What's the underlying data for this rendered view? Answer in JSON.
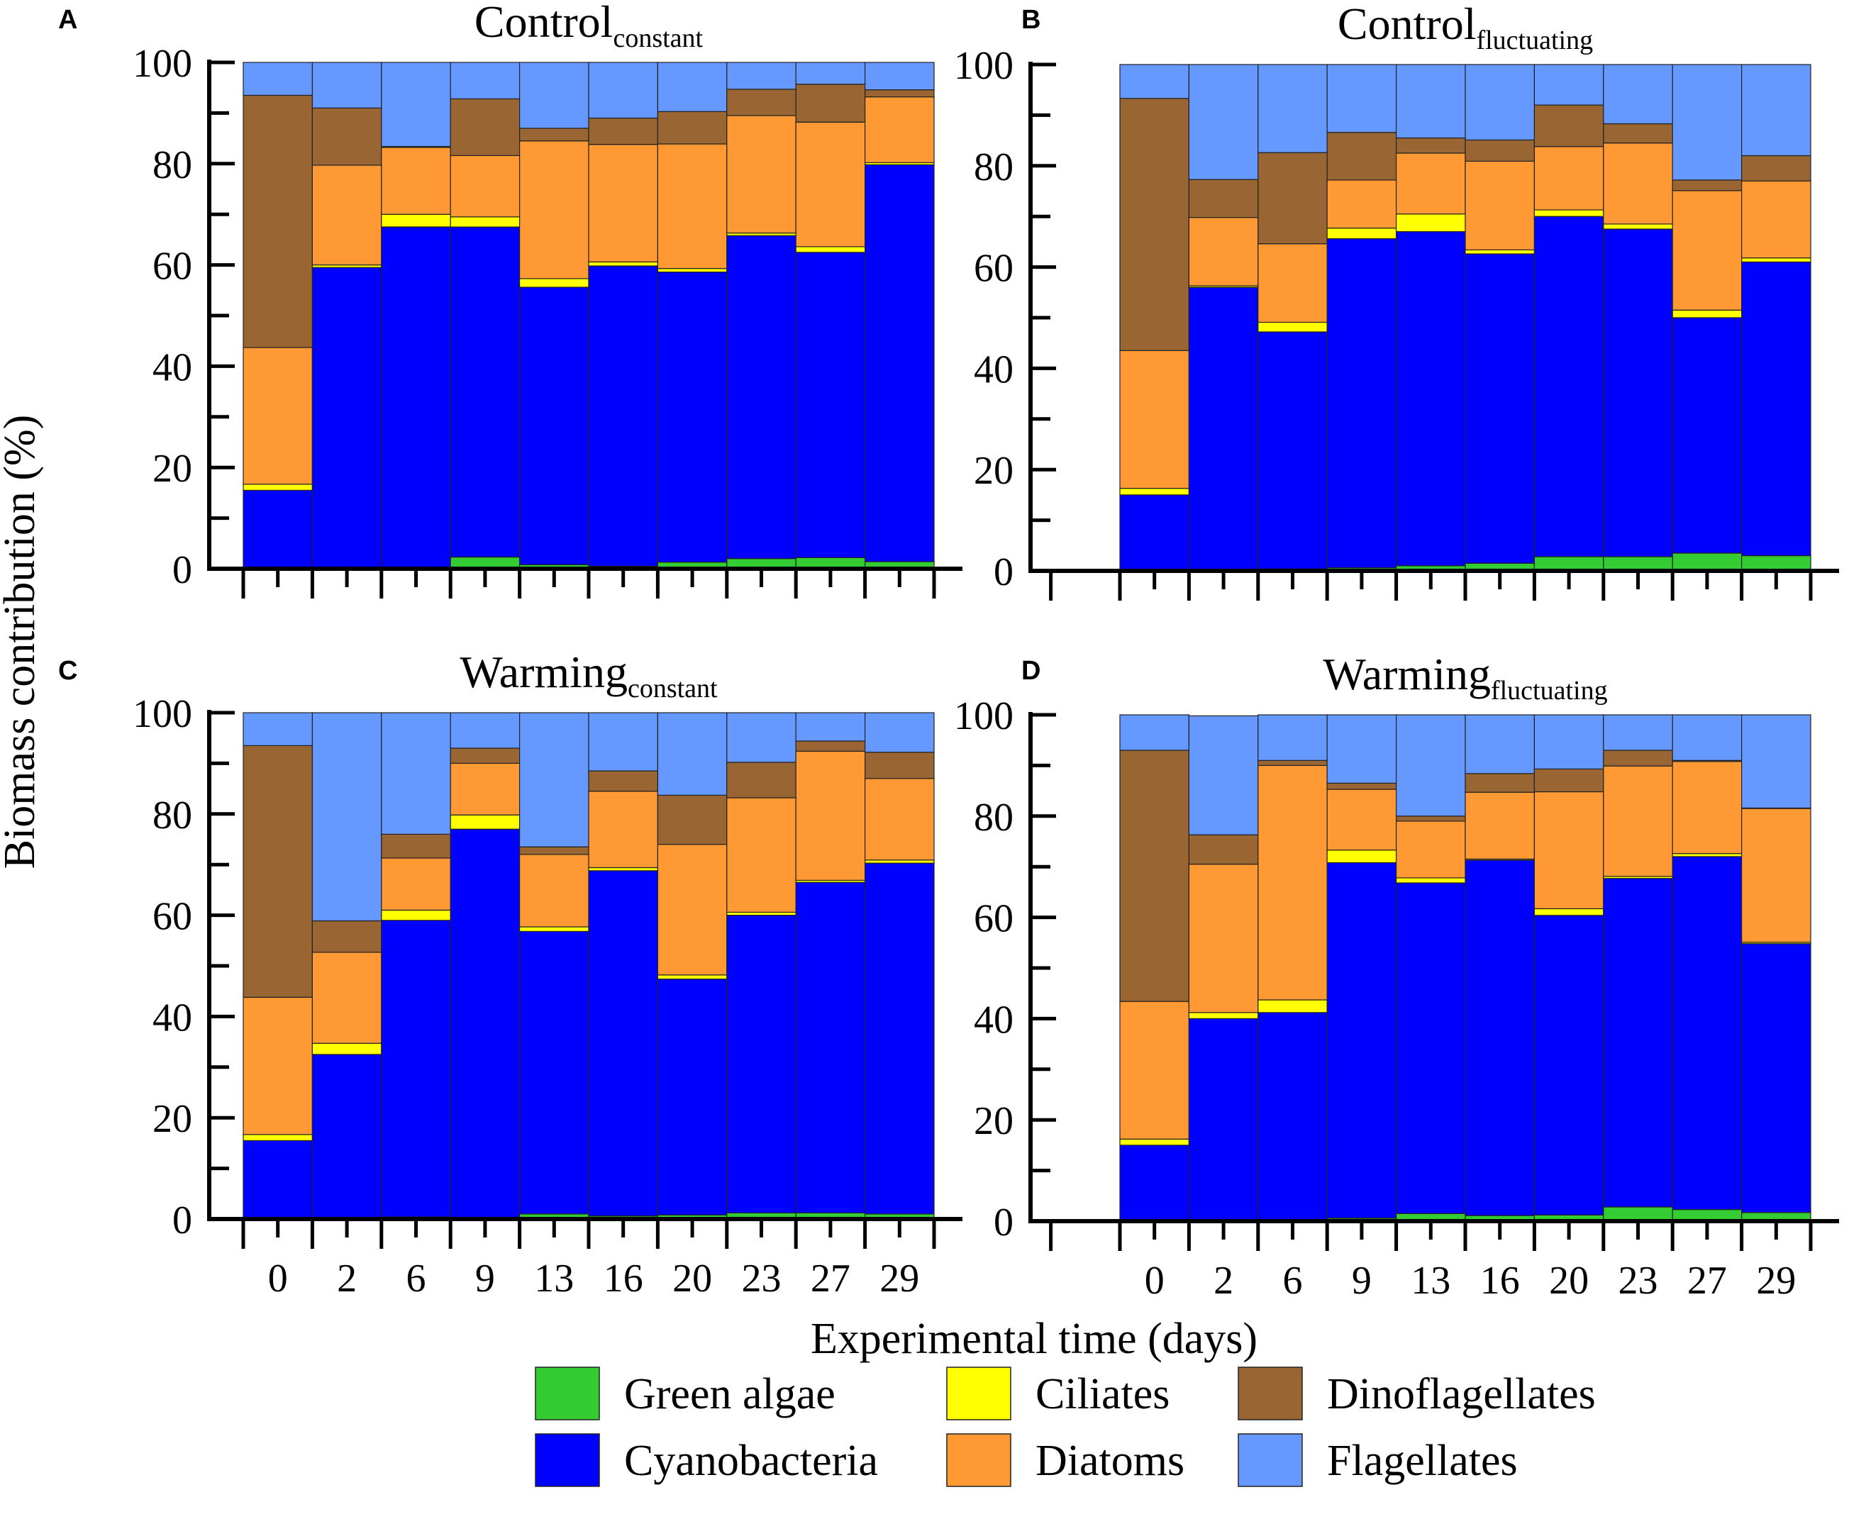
{
  "figure": {
    "y_axis_label": "Biomass contribution (%)",
    "x_axis_label": "Experimental time (days)"
  },
  "legend": [
    {
      "key": "green_algae",
      "label": "Green algae",
      "color": "#33CC33"
    },
    {
      "key": "ciliates",
      "label": "Ciliates",
      "color": "#FFFF00"
    },
    {
      "key": "dinoflagellates",
      "label": "Dinoflagellates",
      "color": "#996633"
    },
    {
      "key": "cyanobacteria",
      "label": "Cyanobacteria",
      "color": "#0000FF"
    },
    {
      "key": "diatoms",
      "label": "Diatoms",
      "color": "#FF9933"
    },
    {
      "key": "flagellates",
      "label": "Flagellates",
      "color": "#6699FF"
    }
  ],
  "chart_data": [
    {
      "type": "bar",
      "stacked": true,
      "panel": "A",
      "title": "Control",
      "title_subscript": "constant",
      "ylabel": "Biomass contribution (%)",
      "xlabel": "Experimental time (days)",
      "ylim": [
        0,
        100
      ],
      "yticks": [
        0,
        20,
        40,
        60,
        80,
        100
      ],
      "categories": [
        "0",
        "2",
        "6",
        "9",
        "13",
        "16",
        "20",
        "23",
        "27",
        "29"
      ],
      "series": [
        {
          "name": "Green algae",
          "values": [
            0.2,
            0.3,
            0.3,
            2.3,
            0.8,
            0.5,
            1.3,
            2.0,
            2.2,
            1.4
          ]
        },
        {
          "name": "Cyanobacteria",
          "values": [
            15.3,
            59.2,
            67.2,
            65.2,
            54.8,
            59.3,
            57.3,
            63.8,
            60.3,
            78.4
          ]
        },
        {
          "name": "Ciliates",
          "values": [
            1.2,
            0.5,
            2.5,
            2.0,
            1.7,
            0.8,
            0.7,
            0.5,
            1.1,
            0.4
          ]
        },
        {
          "name": "Diatoms",
          "values": [
            27.0,
            19.7,
            13.2,
            12.1,
            27.2,
            23.2,
            24.6,
            23.2,
            24.6,
            13.0
          ]
        },
        {
          "name": "Dinoflagellates",
          "values": [
            49.8,
            11.3,
            0.2,
            11.2,
            2.5,
            5.2,
            6.4,
            5.2,
            7.5,
            1.4
          ]
        },
        {
          "name": "Flagellates",
          "values": [
            6.5,
            9.0,
            16.6,
            7.2,
            13.0,
            11.0,
            9.7,
            5.3,
            4.3,
            5.4
          ]
        }
      ]
    },
    {
      "type": "bar",
      "stacked": true,
      "panel": "B",
      "title": "Control",
      "title_subscript": "fluctuating",
      "ylabel": "Biomass contribution (%)",
      "xlabel": "Experimental time (days)",
      "ylim": [
        0,
        100
      ],
      "yticks": [
        0,
        20,
        40,
        60,
        80,
        100
      ],
      "categories": [
        "0",
        "2",
        "6",
        "9",
        "13",
        "16",
        "20",
        "23",
        "27",
        "29"
      ],
      "series": [
        {
          "name": "Green algae",
          "values": [
            0.2,
            0.2,
            0.4,
            0.6,
            1.0,
            1.5,
            2.8,
            2.8,
            3.5,
            3.0
          ]
        },
        {
          "name": "Cyanobacteria",
          "values": [
            14.8,
            55.8,
            46.8,
            65.0,
            66.0,
            61.1,
            67.2,
            64.7,
            46.5,
            58.0
          ]
        },
        {
          "name": "Ciliates",
          "values": [
            1.3,
            0.3,
            1.9,
            2.1,
            3.5,
            0.8,
            1.3,
            1.0,
            1.5,
            0.8
          ]
        },
        {
          "name": "Diatoms",
          "values": [
            27.2,
            13.5,
            15.5,
            9.5,
            12.0,
            17.5,
            12.5,
            16.0,
            23.6,
            15.2
          ]
        },
        {
          "name": "Dinoflagellates",
          "values": [
            49.8,
            7.5,
            18.0,
            9.4,
            3.0,
            4.2,
            8.2,
            3.8,
            2.1,
            5.0
          ]
        },
        {
          "name": "Flagellates",
          "values": [
            6.7,
            22.7,
            17.4,
            13.4,
            14.5,
            14.9,
            8.0,
            11.7,
            22.8,
            18.0
          ]
        }
      ]
    },
    {
      "type": "bar",
      "stacked": true,
      "panel": "C",
      "title": "Warming",
      "title_subscript": "constant",
      "ylabel": "Biomass contribution (%)",
      "xlabel": "Experimental time (days)",
      "ylim": [
        0,
        100
      ],
      "yticks": [
        0,
        20,
        40,
        60,
        80,
        100
      ],
      "categories": [
        "0",
        "2",
        "6",
        "9",
        "13",
        "16",
        "20",
        "23",
        "27",
        "29"
      ],
      "series": [
        {
          "name": "Green algae",
          "values": [
            0.2,
            0.2,
            0.4,
            0.3,
            1.0,
            0.6,
            0.8,
            1.2,
            1.2,
            1.0
          ]
        },
        {
          "name": "Cyanobacteria",
          "values": [
            15.3,
            32.3,
            58.6,
            76.7,
            55.8,
            68.2,
            46.6,
            58.8,
            65.3,
            69.3
          ]
        },
        {
          "name": "Ciliates",
          "values": [
            1.2,
            2.2,
            2.0,
            2.8,
            0.9,
            0.6,
            0.8,
            0.6,
            0.4,
            0.6
          ]
        },
        {
          "name": "Diatoms",
          "values": [
            27.1,
            18.0,
            10.3,
            10.2,
            14.3,
            15.1,
            25.8,
            22.6,
            25.5,
            16.1
          ]
        },
        {
          "name": "Dinoflagellates",
          "values": [
            49.7,
            6.2,
            4.7,
            3.0,
            1.5,
            4.0,
            9.7,
            7.0,
            2.0,
            5.2
          ]
        },
        {
          "name": "Flagellates",
          "values": [
            6.5,
            41.1,
            24.0,
            7.0,
            26.5,
            11.5,
            16.3,
            9.8,
            5.6,
            7.8
          ]
        }
      ]
    },
    {
      "type": "bar",
      "stacked": true,
      "panel": "D",
      "title": "Warming",
      "title_subscript": "fluctuating",
      "ylabel": "Biomass contribution (%)",
      "xlabel": "Experimental time (days)",
      "ylim": [
        0,
        100
      ],
      "yticks": [
        0,
        20,
        40,
        60,
        80,
        100
      ],
      "categories": [
        "0",
        "2",
        "6",
        "9",
        "13",
        "16",
        "20",
        "23",
        "27",
        "29"
      ],
      "series": [
        {
          "name": "Green algae",
          "values": [
            0.2,
            0.2,
            0.2,
            0.6,
            1.5,
            1.1,
            1.2,
            2.8,
            2.3,
            1.7
          ]
        },
        {
          "name": "Cyanobacteria",
          "values": [
            14.8,
            39.8,
            41.0,
            70.2,
            65.3,
            70.2,
            59.2,
            64.9,
            69.7,
            53.1
          ]
        },
        {
          "name": "Ciliates",
          "values": [
            1.2,
            1.2,
            2.5,
            2.5,
            1.0,
            0.2,
            1.3,
            0.4,
            0.6,
            0.3
          ]
        },
        {
          "name": "Diatoms",
          "values": [
            27.2,
            29.3,
            46.3,
            12.0,
            11.2,
            13.2,
            23.1,
            21.8,
            18.2,
            26.4
          ]
        },
        {
          "name": "Dinoflagellates",
          "values": [
            49.6,
            5.8,
            1.0,
            1.2,
            1.0,
            3.7,
            4.5,
            3.1,
            0.2,
            0.1
          ]
        },
        {
          "name": "Flagellates",
          "values": [
            7.0,
            23.5,
            9.0,
            13.5,
            20.0,
            11.6,
            10.7,
            7.0,
            9.0,
            18.4
          ]
        }
      ]
    }
  ]
}
